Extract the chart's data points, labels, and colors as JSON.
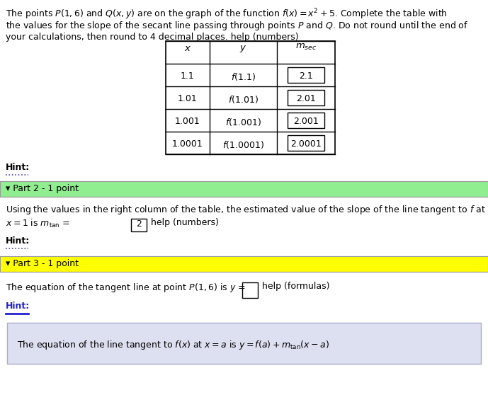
{
  "bg_color": "#ffffff",
  "page_width": 6.89,
  "page_height": 5.92,
  "part1_text_lines": [
    "The points $P(1, 6)$ and $Q(x, y)$ are on the graph of the function $f(x) = x^2 + 5$. Complete the table with",
    "the values for the slope of the secant line passing through points $P$ and $Q$. Do not round until the end of",
    "your calculations, then round to 4 decimal places. help (numbers)"
  ],
  "table_x": [
    "1.1",
    "1.01",
    "1.001",
    "1.0001"
  ],
  "table_y": [
    "$f(1.1)$",
    "$f(1.01)$",
    "$f(1.001)$",
    "$f(1.0001)$"
  ],
  "table_msec": [
    "2.1",
    "2.01",
    "2.001",
    "2.0001"
  ],
  "hint_label": "Hint:",
  "part2_header": "▾ Part 2 - 1 point",
  "part2_bg": "#90ee90",
  "part2_text_line1": "Using the values in the right column of the table, the estimated value of the slope of the line tangent to $f$ at",
  "part2_text_line2_pre": "$x = 1$ is $m_{\\mathrm{tan}}$ =",
  "part2_box_value": "2",
  "part2_text_line2_suffix": "help (numbers)",
  "part2_hint": "Hint:",
  "part3_header": "▾ Part 3 - 1 point",
  "part3_bg": "#ffff00",
  "part3_text_pre": "The equation of the tangent line at point $P(1, 6)$ is $y$ =",
  "part3_suffix": "help (formulas)",
  "part3_hint_text": "Hint:",
  "hint_box_bg": "#dde0f0",
  "hint_box_text": "The equation of the line tangent to $f(x)$ at $x = a$ is $y = f(a) + m_{\\mathrm{tan}}(x - a)$"
}
